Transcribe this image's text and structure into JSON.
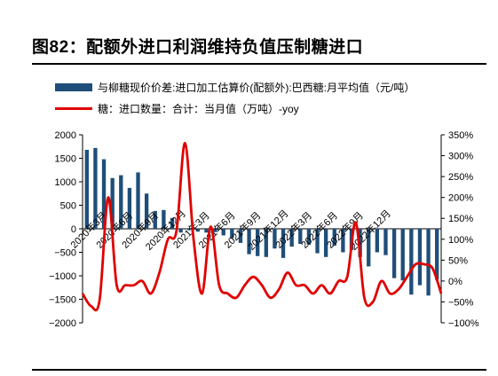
{
  "figure": {
    "title": "图82：配额外进口利润维持负值压制糖进口"
  },
  "colors": {
    "bar": "#1f4e79",
    "line": "#e00000"
  },
  "chart_data": {
    "type": "bar",
    "title": "图82：配额外进口利润维持负值压制糖进口",
    "x_tick_labels": [
      "2020年3月",
      "2020年6月",
      "2020年9月",
      "2020年12月",
      "2021年3月",
      "2021年6月",
      "2021年9月",
      "2021年12月",
      "2022年3月",
      "2022年6月",
      "2022年9月",
      "2022年12月"
    ],
    "y_left": {
      "ticks": [
        "2000",
        "1500",
        "1000",
        "500",
        "0",
        "−500",
        "−1000",
        "−1500",
        "−2000"
      ],
      "range": [
        -2000,
        2000
      ]
    },
    "y_right": {
      "ticks": [
        "350%",
        "300%",
        "250%",
        "200%",
        "150%",
        "100%",
        "50%",
        "0%",
        "−50%",
        "−100%"
      ],
      "range": [
        -100,
        350
      ]
    },
    "series": [
      {
        "name": "与柳糖现价价差:进口加工估算价(配额外):巴西糖:月平均值（元/吨）",
        "type": "bar",
        "axis": "left",
        "values": [
          1680,
          1720,
          1480,
          1080,
          1140,
          870,
          1200,
          750,
          380,
          400,
          230,
          -80,
          -30,
          -60,
          -80,
          -70,
          -140,
          -200,
          -300,
          -540,
          -580,
          -600,
          -420,
          -620,
          -380,
          -320,
          -340,
          -520,
          -600,
          -360,
          -500,
          -450,
          -600,
          -800,
          -500,
          -560,
          -1050,
          -1100,
          -1400,
          -1200,
          -1420,
          -1080
        ]
      },
      {
        "name": "糖：进口数量：合计：当月值（万吨）-yoy",
        "type": "line",
        "axis": "right",
        "values": [
          -30,
          -60,
          -45,
          200,
          -10,
          -10,
          -10,
          0,
          -30,
          20,
          100,
          120,
          330,
          100,
          -30,
          130,
          -10,
          -30,
          -40,
          -10,
          10,
          -10,
          -40,
          -20,
          20,
          -10,
          -10,
          -30,
          -10,
          -30,
          0,
          10,
          140,
          -40,
          -50,
          0,
          -30,
          -20,
          10,
          40,
          40,
          30,
          -30
        ]
      }
    ]
  }
}
